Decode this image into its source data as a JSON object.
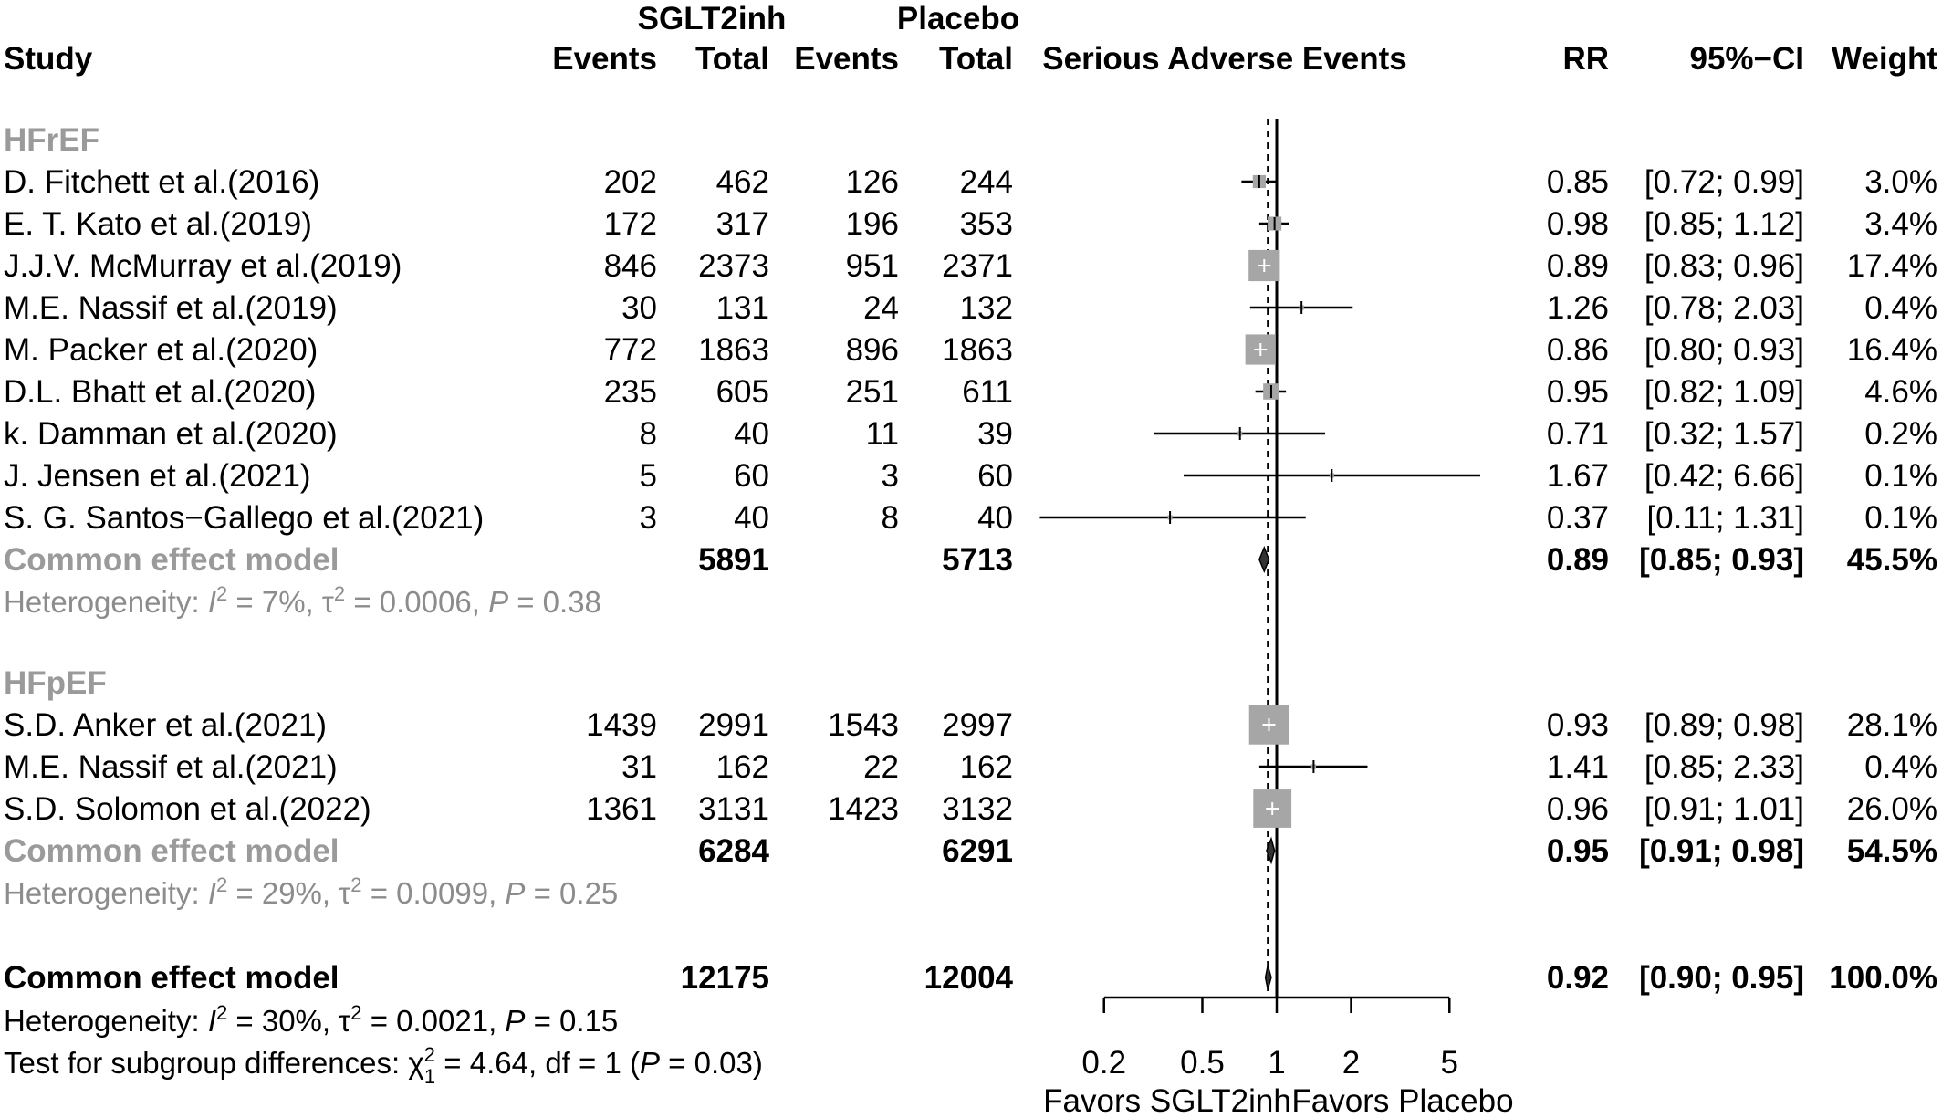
{
  "chart_data": {
    "type": "forest",
    "title": "Serious Adverse Events",
    "arms": [
      "SGLT2inh",
      "Placebo"
    ],
    "columns": {
      "study": "Study",
      "events": "Events",
      "total": "Total",
      "rr": "RR",
      "ci": "95%−CI",
      "weight": "Weight"
    },
    "x_axis": {
      "scale": "log",
      "ticks": [
        0.2,
        0.5,
        1,
        2,
        5
      ],
      "tick_labels": [
        "0.2",
        "0.5",
        "1",
        "2",
        "5"
      ],
      "left_label": "Favors SGLT2inh",
      "right_label": "Favors Placebo",
      "null_line": 1,
      "overall_line": 0.92
    },
    "subgroups": [
      {
        "name": "HFrEF",
        "studies": [
          {
            "study": "D. Fitchett et al.(2016)",
            "e1": "202",
            "n1": "462",
            "e2": "126",
            "n2": "244",
            "rr": 0.85,
            "lo": 0.72,
            "hi": 0.99,
            "rr_text": "0.85",
            "ci_text": "[0.72; 0.99]",
            "weight_text": "3.0%",
            "weight": 3.0
          },
          {
            "study": "E.  T. Kato et al.(2019)",
            "e1": "172",
            "n1": "317",
            "e2": "196",
            "n2": "353",
            "rr": 0.98,
            "lo": 0.85,
            "hi": 1.12,
            "rr_text": "0.98",
            "ci_text": "[0.85; 1.12]",
            "weight_text": "3.4%",
            "weight": 3.4
          },
          {
            "study": "J.J.V. McMurray et al.(2019)",
            "e1": "846",
            "n1": "2373",
            "e2": "951",
            "n2": "2371",
            "rr": 0.89,
            "lo": 0.83,
            "hi": 0.96,
            "rr_text": "0.89",
            "ci_text": "[0.83; 0.96]",
            "weight_text": "17.4%",
            "weight": 17.4
          },
          {
            "study": "M.E. Nassif et al.(2019)",
            "e1": "30",
            "n1": "131",
            "e2": "24",
            "n2": "132",
            "rr": 1.26,
            "lo": 0.78,
            "hi": 2.03,
            "rr_text": "1.26",
            "ci_text": "[0.78; 2.03]",
            "weight_text": "0.4%",
            "weight": 0.4
          },
          {
            "study": "M. Packer et al.(2020)",
            "e1": "772",
            "n1": "1863",
            "e2": "896",
            "n2": "1863",
            "rr": 0.86,
            "lo": 0.8,
            "hi": 0.93,
            "rr_text": "0.86",
            "ci_text": "[0.80; 0.93]",
            "weight_text": "16.4%",
            "weight": 16.4
          },
          {
            "study": "D.L. Bhatt et al.(2020)",
            "e1": "235",
            "n1": "605",
            "e2": "251",
            "n2": "611",
            "rr": 0.95,
            "lo": 0.82,
            "hi": 1.09,
            "rr_text": "0.95",
            "ci_text": "[0.82; 1.09]",
            "weight_text": "4.6%",
            "weight": 4.6
          },
          {
            "study": "k. Damman et al.(2020)",
            "e1": "8",
            "n1": "40",
            "e2": "11",
            "n2": "39",
            "rr": 0.71,
            "lo": 0.32,
            "hi": 1.57,
            "rr_text": "0.71",
            "ci_text": "[0.32; 1.57]",
            "weight_text": "0.2%",
            "weight": 0.2
          },
          {
            "study": "J. Jensen et al.(2021)",
            "e1": "5",
            "n1": "60",
            "e2": "3",
            "n2": "60",
            "rr": 1.67,
            "lo": 0.42,
            "hi": 6.66,
            "rr_text": "1.67",
            "ci_text": "[0.42; 6.66]",
            "weight_text": "0.1%",
            "weight": 0.1
          },
          {
            "study": "S. G. Santos−Gallego et al.(2021)",
            "e1": "3",
            "n1": "40",
            "e2": "8",
            "n2": "40",
            "rr": 0.37,
            "lo": 0.11,
            "hi": 1.31,
            "rr_text": "0.37",
            "ci_text": "[0.11; 1.31]",
            "weight_text": "0.1%",
            "weight": 0.1
          }
        ],
        "pooled": {
          "label": "Common effect model",
          "n1": "5891",
          "n2": "5713",
          "rr": 0.89,
          "lo": 0.85,
          "hi": 0.93,
          "rr_text": "0.89",
          "ci_text": "[0.85; 0.93]",
          "weight_text": "45.5%"
        },
        "heterogeneity": {
          "prefix": "Heterogeneity: ",
          "i2_sym": "I",
          "i2_rest": " = 7%, ",
          "tau_sym": "τ",
          "tau_rest": " = 0.0006, ",
          "p_sym": "P",
          "p_rest": " = 0.38"
        }
      },
      {
        "name": "HFpEF",
        "studies": [
          {
            "study": "S.D. Anker et al.(2021)",
            "e1": "1439",
            "n1": "2991",
            "e2": "1543",
            "n2": "2997",
            "rr": 0.93,
            "lo": 0.89,
            "hi": 0.98,
            "rr_text": "0.93",
            "ci_text": "[0.89; 0.98]",
            "weight_text": "28.1%",
            "weight": 28.1
          },
          {
            "study": "M.E. Nassif et al.(2021)",
            "e1": "31",
            "n1": "162",
            "e2": "22",
            "n2": "162",
            "rr": 1.41,
            "lo": 0.85,
            "hi": 2.33,
            "rr_text": "1.41",
            "ci_text": "[0.85; 2.33]",
            "weight_text": "0.4%",
            "weight": 0.4
          },
          {
            "study": "S.D. Solomon et al.(2022)",
            "e1": "1361",
            "n1": "3131",
            "e2": "1423",
            "n2": "3132",
            "rr": 0.96,
            "lo": 0.91,
            "hi": 1.01,
            "rr_text": "0.96",
            "ci_text": "[0.91; 1.01]",
            "weight_text": "26.0%",
            "weight": 26.0
          }
        ],
        "pooled": {
          "label": "Common effect model",
          "n1": "6284",
          "n2": "6291",
          "rr": 0.95,
          "lo": 0.91,
          "hi": 0.98,
          "rr_text": "0.95",
          "ci_text": "[0.91; 0.98]",
          "weight_text": "54.5%"
        },
        "heterogeneity": {
          "prefix": "Heterogeneity: ",
          "i2_sym": "I",
          "i2_rest": " = 29%, ",
          "tau_sym": "τ",
          "tau_rest": " = 0.0099, ",
          "p_sym": "P",
          "p_rest": " = 0.25"
        }
      }
    ],
    "overall": {
      "label": "Common effect model",
      "n1": "12175",
      "n2": "12004",
      "rr": 0.92,
      "lo": 0.9,
      "hi": 0.95,
      "rr_text": "0.92",
      "ci_text": "[0.90; 0.95]",
      "weight_text": "100.0%",
      "heterogeneity": {
        "prefix": "Heterogeneity: ",
        "i2_sym": "I",
        "i2_rest": " = 30%, ",
        "tau_sym": "τ",
        "tau_rest": " = 0.0021, ",
        "p_sym": "P",
        "p_rest": " = 0.15"
      },
      "subgroup_test": {
        "prefix": "Test for subgroup differences: ",
        "chi_sym": "χ",
        "chi_sup": "2",
        "chi_sub": "1",
        "middle": " = 4.64, df = 1 (",
        "p_sym": "P",
        "p_rest": " = 0.03)"
      }
    }
  }
}
